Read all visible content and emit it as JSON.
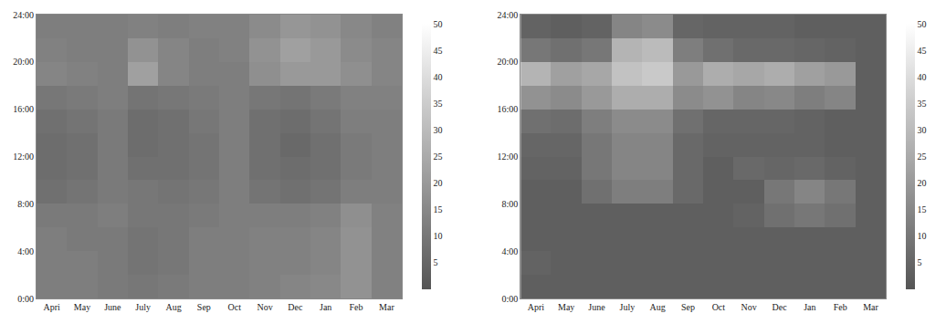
{
  "chart_data": [
    {
      "type": "heatmap",
      "categories": [
        "Apri",
        "May",
        "June",
        "July",
        "Aug",
        "Sep",
        "Oct",
        "Nov",
        "Dec",
        "Jan",
        "Feb",
        "Mar"
      ],
      "y": [
        1,
        3,
        5,
        7,
        9,
        11,
        13,
        15,
        17,
        19,
        21,
        23
      ],
      "z": [
        [
          12,
          12,
          11,
          10,
          11,
          12,
          12,
          13,
          14,
          15,
          18,
          13
        ],
        [
          12,
          12,
          11,
          9,
          10,
          12,
          12,
          13,
          13,
          14,
          18,
          13
        ],
        [
          12,
          11,
          11,
          9,
          10,
          12,
          12,
          13,
          13,
          14,
          18,
          13
        ],
        [
          11,
          11,
          12,
          10,
          10,
          11,
          12,
          12,
          12,
          13,
          17,
          13
        ],
        [
          8,
          9,
          11,
          10,
          9,
          10,
          12,
          9,
          8,
          9,
          12,
          12
        ],
        [
          7,
          8,
          11,
          8,
          8,
          9,
          12,
          8,
          7,
          8,
          11,
          12
        ],
        [
          7,
          8,
          11,
          7,
          8,
          9,
          12,
          8,
          6,
          8,
          11,
          12
        ],
        [
          8,
          9,
          11,
          7,
          8,
          10,
          12,
          8,
          7,
          9,
          12,
          12
        ],
        [
          10,
          11,
          12,
          9,
          10,
          11,
          12,
          10,
          9,
          11,
          13,
          13
        ],
        [
          14,
          13,
          12,
          22,
          14,
          12,
          12,
          17,
          20,
          20,
          17,
          14
        ],
        [
          13,
          12,
          12,
          18,
          14,
          12,
          13,
          18,
          22,
          20,
          16,
          14
        ],
        [
          12,
          12,
          12,
          13,
          12,
          13,
          13,
          16,
          19,
          18,
          15,
          13
        ]
      ],
      "ylim": [
        0,
        24
      ],
      "yticks": [
        {
          "value": 0,
          "label": "0:00"
        },
        {
          "value": 4,
          "label": "4:00"
        },
        {
          "value": 8,
          "label": "8:00"
        },
        {
          "value": 12,
          "label": "12:00"
        },
        {
          "value": 16,
          "label": "16:00"
        },
        {
          "value": 20,
          "label": "20:00"
        },
        {
          "value": 24,
          "label": "24:00"
        }
      ],
      "zlim": [
        0,
        50
      ],
      "zticks": [
        5,
        10,
        15,
        20,
        25,
        30,
        35,
        40,
        45,
        50
      ],
      "grid": false
    },
    {
      "type": "heatmap",
      "categories": [
        "Apri",
        "May",
        "June",
        "July",
        "Aug",
        "Sep",
        "Oct",
        "Nov",
        "Dec",
        "Jan",
        "Feb",
        "Mar"
      ],
      "y": [
        1,
        3,
        5,
        7,
        9,
        11,
        13,
        15,
        17,
        19,
        21,
        23
      ],
      "z": [
        [
          3,
          3,
          3,
          3,
          3,
          3,
          3,
          3,
          3,
          3,
          3,
          3
        ],
        [
          4,
          3,
          3,
          3,
          3,
          3,
          3,
          3,
          3,
          3,
          3,
          3
        ],
        [
          3,
          3,
          3,
          3,
          3,
          3,
          3,
          3,
          3,
          3,
          3,
          3
        ],
        [
          3,
          3,
          3,
          3,
          3,
          3,
          3,
          4,
          8,
          10,
          8,
          3
        ],
        [
          3,
          3,
          8,
          12,
          12,
          6,
          3,
          3,
          10,
          14,
          10,
          3
        ],
        [
          4,
          4,
          10,
          14,
          14,
          6,
          3,
          6,
          5,
          6,
          4,
          3
        ],
        [
          5,
          5,
          10,
          14,
          14,
          6,
          4,
          4,
          4,
          4,
          3,
          3
        ],
        [
          8,
          7,
          12,
          16,
          16,
          8,
          5,
          5,
          5,
          4,
          3,
          3
        ],
        [
          18,
          16,
          20,
          26,
          26,
          16,
          18,
          14,
          15,
          12,
          14,
          3
        ],
        [
          28,
          22,
          24,
          32,
          34,
          20,
          26,
          24,
          26,
          22,
          20,
          3
        ],
        [
          10,
          8,
          10,
          28,
          30,
          12,
          8,
          6,
          6,
          5,
          4,
          3
        ],
        [
          4,
          3,
          4,
          14,
          16,
          5,
          4,
          4,
          4,
          3,
          3,
          3
        ]
      ],
      "ylim": [
        0,
        24
      ],
      "yticks": [
        {
          "value": 0,
          "label": "0:00"
        },
        {
          "value": 4,
          "label": "4:00"
        },
        {
          "value": 8,
          "label": "8:00"
        },
        {
          "value": 12,
          "label": "12:00"
        },
        {
          "value": 16,
          "label": "16:00"
        },
        {
          "value": 20,
          "label": "20:00"
        },
        {
          "value": 24,
          "label": "24:00"
        }
      ],
      "zlim": [
        0,
        50
      ],
      "zticks": [
        5,
        10,
        15,
        20,
        25,
        30,
        35,
        40,
        45,
        50
      ],
      "grid": false
    }
  ]
}
